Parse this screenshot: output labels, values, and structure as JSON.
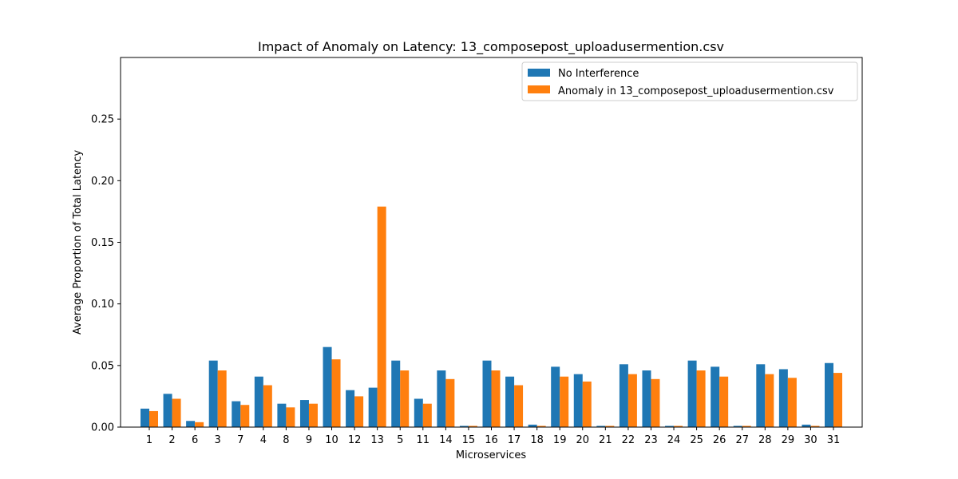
{
  "chart_data": {
    "type": "bar",
    "title": "Impact of Anomaly on Latency: 13_composepost_uploadusermention.csv",
    "xlabel": "Microservices",
    "ylabel": "Average Proportion of Total Latency",
    "ylim": [
      0,
      0.3
    ],
    "yticks": [
      0.0,
      0.05,
      0.1,
      0.15,
      0.2,
      0.25
    ],
    "ytick_labels": [
      "0.00",
      "0.05",
      "0.10",
      "0.15",
      "0.20",
      "0.25"
    ],
    "legend_position": "top-right",
    "grid": false,
    "categories": [
      "1",
      "2",
      "6",
      "3",
      "7",
      "4",
      "8",
      "9",
      "10",
      "12",
      "13",
      "5",
      "11",
      "14",
      "15",
      "16",
      "17",
      "18",
      "19",
      "20",
      "21",
      "22",
      "23",
      "24",
      "25",
      "26",
      "27",
      "28",
      "29",
      "30",
      "31"
    ],
    "series": [
      {
        "name": "No Interference",
        "color": "#1f77b4",
        "values": [
          0.015,
          0.027,
          0.005,
          0.054,
          0.021,
          0.041,
          0.019,
          0.022,
          0.065,
          0.03,
          0.032,
          0.054,
          0.023,
          0.046,
          0.001,
          0.054,
          0.041,
          0.002,
          0.049,
          0.043,
          0.001,
          0.051,
          0.046,
          0.001,
          0.054,
          0.049,
          0.001,
          0.051,
          0.047,
          0.002,
          0.052
        ]
      },
      {
        "name": "Anomaly in 13_composepost_uploadusermention.csv",
        "color": "#ff7f0e",
        "values": [
          0.013,
          0.023,
          0.004,
          0.046,
          0.018,
          0.034,
          0.016,
          0.019,
          0.055,
          0.025,
          0.179,
          0.046,
          0.019,
          0.039,
          0.001,
          0.046,
          0.034,
          0.001,
          0.041,
          0.037,
          0.001,
          0.043,
          0.039,
          0.001,
          0.046,
          0.041,
          0.001,
          0.043,
          0.04,
          0.001,
          0.044
        ]
      }
    ]
  }
}
